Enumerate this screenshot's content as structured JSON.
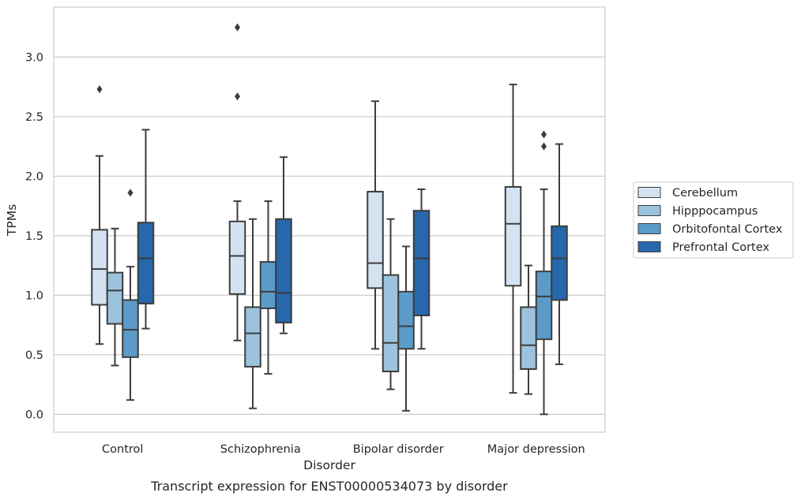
{
  "chart_data": {
    "type": "box",
    "title": "",
    "caption": "Transcript expression for ENST00000534073 by disorder",
    "xlabel": "Disorder",
    "ylabel": "TPMs",
    "ylim": [
      -0.15,
      3.42
    ],
    "yticks": [
      0.0,
      0.5,
      1.0,
      1.5,
      2.0,
      2.5,
      3.0
    ],
    "ytick_labels": [
      "0.0",
      "0.5",
      "1.0",
      "1.5",
      "2.0",
      "2.5",
      "3.0"
    ],
    "grid": "horizontal",
    "legend_position": "right",
    "categories": [
      "Control",
      "Schizophrenia",
      "Bipolar disorder",
      "Major depression"
    ],
    "series": [
      {
        "name": "Cerebellum",
        "color": "#d4e3f2",
        "boxes": [
          {
            "whislo": 0.59,
            "q1": 0.92,
            "med": 1.22,
            "q3": 1.55,
            "whishi": 2.17,
            "fliers": [
              2.73
            ]
          },
          {
            "whislo": 0.62,
            "q1": 1.01,
            "med": 1.33,
            "q3": 1.62,
            "whishi": 1.79,
            "fliers": [
              3.25,
              2.67
            ]
          },
          {
            "whislo": 0.55,
            "q1": 1.06,
            "med": 1.27,
            "q3": 1.87,
            "whishi": 2.63,
            "fliers": []
          },
          {
            "whislo": 0.18,
            "q1": 1.08,
            "med": 1.6,
            "q3": 1.91,
            "whishi": 2.77,
            "fliers": []
          }
        ]
      },
      {
        "name": "Hipppocampus",
        "color": "#9cc3dd",
        "boxes": [
          {
            "whislo": 0.41,
            "q1": 0.76,
            "med": 1.04,
            "q3": 1.19,
            "whishi": 1.56,
            "fliers": []
          },
          {
            "whislo": 0.05,
            "q1": 0.4,
            "med": 0.68,
            "q3": 0.9,
            "whishi": 1.64,
            "fliers": []
          },
          {
            "whislo": 0.21,
            "q1": 0.36,
            "med": 0.6,
            "q3": 1.17,
            "whishi": 1.64,
            "fliers": []
          },
          {
            "whislo": 0.17,
            "q1": 0.38,
            "med": 0.58,
            "q3": 0.9,
            "whishi": 1.25,
            "fliers": []
          }
        ]
      },
      {
        "name": "Orbitofontal Cortex",
        "color": "#5b9bc7",
        "boxes": [
          {
            "whislo": 0.12,
            "q1": 0.48,
            "med": 0.71,
            "q3": 0.96,
            "whishi": 1.24,
            "fliers": [
              1.86
            ]
          },
          {
            "whislo": 0.34,
            "q1": 0.89,
            "med": 1.03,
            "q3": 1.28,
            "whishi": 1.79,
            "fliers": []
          },
          {
            "whislo": 0.03,
            "q1": 0.55,
            "med": 0.74,
            "q3": 1.03,
            "whishi": 1.41,
            "fliers": []
          },
          {
            "whislo": 0.0,
            "q1": 0.63,
            "med": 0.99,
            "q3": 1.2,
            "whishi": 1.89,
            "fliers": [
              2.35,
              2.25
            ]
          }
        ]
      },
      {
        "name": "Prefrontal Cortex",
        "color": "#2767ab",
        "boxes": [
          {
            "whislo": 0.72,
            "q1": 0.93,
            "med": 1.31,
            "q3": 1.61,
            "whishi": 2.39,
            "fliers": []
          },
          {
            "whislo": 0.68,
            "q1": 0.77,
            "med": 1.02,
            "q3": 1.64,
            "whishi": 2.16,
            "fliers": []
          },
          {
            "whislo": 0.55,
            "q1": 0.83,
            "med": 1.31,
            "q3": 1.71,
            "whishi": 1.89,
            "fliers": []
          },
          {
            "whislo": 0.42,
            "q1": 0.96,
            "med": 1.31,
            "q3": 1.58,
            "whishi": 2.27,
            "fliers": []
          }
        ]
      }
    ]
  },
  "colors": {
    "edge": "#3d3d3d",
    "grid": "#cccccc",
    "frame": "#cccccc"
  }
}
